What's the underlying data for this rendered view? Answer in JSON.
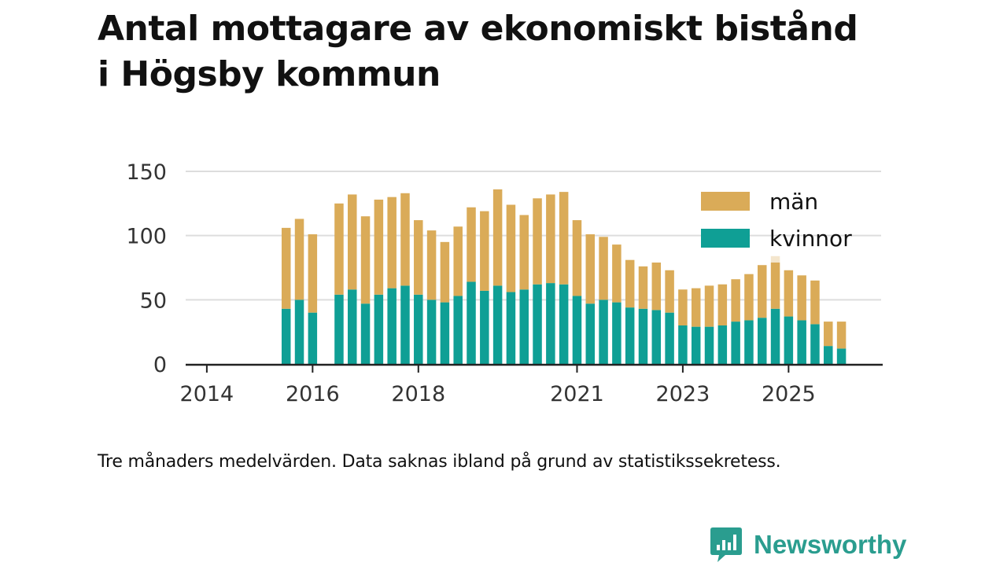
{
  "title_lines": [
    "Antal mottagare av ekonomiskt bistånd",
    "i Högsby kommun"
  ],
  "footnote": "Tre månaders medelvärden. Data saknas ibland på grund av statistikssekretess.",
  "brand": {
    "name": "Newsworthy",
    "icon": "newsworthy-logo-icon"
  },
  "colors": {
    "man": "#daab58",
    "kvinnor": "#0f9f95",
    "axis": "#222222",
    "grid": "#dddddd"
  },
  "chart_data": {
    "type": "bar",
    "stacked": true,
    "x_unit": "quarter",
    "x_start": 2014.0,
    "x_step": 0.25,
    "x_range": [
      2013.6,
      2026.75
    ],
    "ylim": [
      0,
      150
    ],
    "yticks": [
      0,
      50,
      100,
      150
    ],
    "xticks": [
      {
        "value": 2014,
        "label": "2014"
      },
      {
        "value": 2016,
        "label": "2016"
      },
      {
        "value": 2018,
        "label": "2018"
      },
      {
        "value": 2021,
        "label": "2021"
      },
      {
        "value": 2023,
        "label": "2023"
      },
      {
        "value": 2025,
        "label": "2025"
      }
    ],
    "grid": true,
    "legend": {
      "position": "top-right",
      "entries": [
        "män",
        "kvinnor"
      ]
    },
    "series": [
      {
        "name": "kvinnor",
        "color_key": "kvinnor",
        "values": [
          null,
          null,
          null,
          null,
          null,
          null,
          43,
          50,
          40,
          null,
          54,
          58,
          47,
          54,
          59,
          61,
          54,
          50,
          48,
          53,
          64,
          57,
          61,
          56,
          58,
          62,
          63,
          62,
          53,
          47,
          50,
          48,
          44,
          43,
          42,
          40,
          30,
          29,
          29,
          30,
          33,
          34,
          36,
          43,
          37,
          34,
          31,
          14,
          12
        ]
      },
      {
        "name": "män",
        "color_key": "man",
        "values": [
          null,
          null,
          null,
          null,
          null,
          null,
          63,
          63,
          61,
          null,
          71,
          74,
          68,
          74,
          71,
          72,
          58,
          54,
          47,
          54,
          58,
          62,
          75,
          68,
          58,
          67,
          69,
          72,
          59,
          54,
          49,
          45,
          37,
          33,
          37,
          33,
          28,
          30,
          32,
          32,
          33,
          36,
          41,
          36,
          36,
          35,
          34,
          19,
          21
        ]
      }
    ],
    "suppressed_bars": [
      {
        "index": 43,
        "value": 84
      }
    ]
  }
}
